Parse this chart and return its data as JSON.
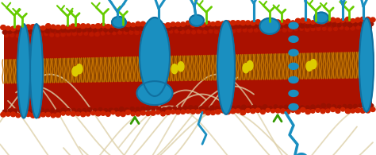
{
  "bg_color": "#ffffff",
  "head_color": "#cc2200",
  "head_color2": "#dd3300",
  "tail_color": "#cc7700",
  "tail_color2": "#dd8800",
  "dark_red": "#991100",
  "prot_color": "#1a8fc0",
  "prot_dark": "#1070a0",
  "green_color": "#66cc00",
  "green_dark": "#339900",
  "chol_color": "#ddcc00",
  "fiber_color": "#ddd0a8",
  "blue_chain": "#1a8fc0",
  "figsize": [
    4.74,
    1.95
  ],
  "dpi": 100,
  "n_lipids": 60,
  "membrane_bg": "#aa1100"
}
